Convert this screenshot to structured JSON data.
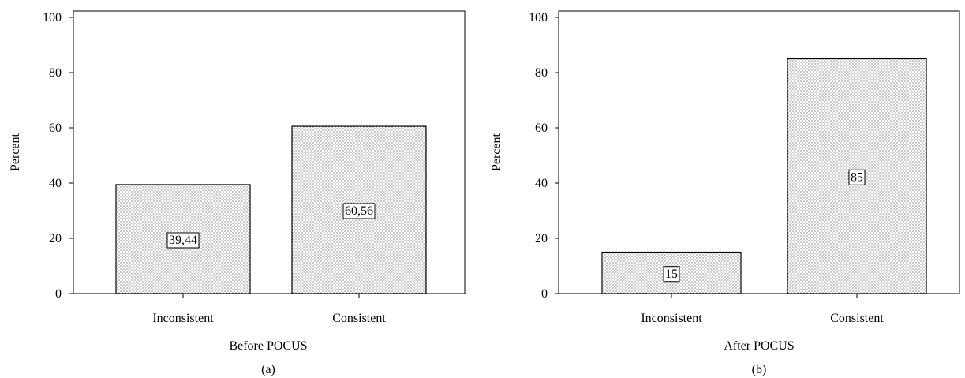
{
  "chart_data": [
    {
      "type": "bar",
      "panel_label": "(a)",
      "xlabel": "Before POCUS",
      "ylabel": "Percent",
      "categories": [
        "Inconsistent",
        "Consistent"
      ],
      "values": [
        39.44,
        60.56
      ],
      "data_labels": [
        "39,44",
        "60,56"
      ],
      "ylim": [
        0,
        100
      ],
      "yticks": [
        0,
        20,
        40,
        60,
        80,
        100
      ],
      "grid": false,
      "fill": "dotted",
      "colors": {
        "bar_fill": "#ffffff",
        "bar_dots": "#444444",
        "stroke": "#000000"
      }
    },
    {
      "type": "bar",
      "panel_label": "(b)",
      "xlabel": "After POCUS",
      "ylabel": "Percent",
      "categories": [
        "Inconsistent",
        "Consistent"
      ],
      "values": [
        15,
        85
      ],
      "data_labels": [
        "15",
        "85"
      ],
      "ylim": [
        0,
        100
      ],
      "yticks": [
        0,
        20,
        40,
        60,
        80,
        100
      ],
      "grid": false,
      "fill": "dotted",
      "colors": {
        "bar_fill": "#ffffff",
        "bar_dots": "#444444",
        "stroke": "#000000"
      }
    }
  ]
}
